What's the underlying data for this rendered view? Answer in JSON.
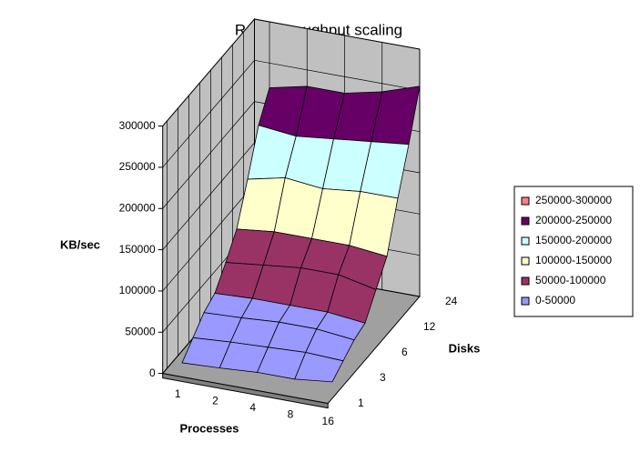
{
  "chart_data": {
    "type": "surface",
    "title": "Read throughput scaling",
    "z_label": "KB/sec",
    "x_label": "Processes",
    "y_label": "Disks",
    "x_categories": [
      1,
      2,
      4,
      8,
      16
    ],
    "y_categories": [
      1,
      null,
      3,
      null,
      6,
      null,
      12,
      null,
      24
    ],
    "values": [
      [
        10000,
        12000,
        15000,
        15000,
        20000
      ],
      [
        25000,
        28000,
        30000,
        32000,
        30000
      ],
      [
        40000,
        42000,
        45000,
        45000,
        40000
      ],
      [
        48000,
        50000,
        50000,
        50000,
        45000
      ],
      [
        70000,
        75000,
        80000,
        80000,
        70000
      ],
      [
        95000,
        100000,
        100000,
        100000,
        95000
      ],
      [
        140000,
        150000,
        145000,
        150000,
        150000
      ],
      [
        190000,
        185000,
        190000,
        195000,
        200000
      ],
      [
        220000,
        230000,
        230000,
        240000,
        255000
      ]
    ],
    "zlim": [
      0,
      300000
    ],
    "zticks": [
      0,
      50000,
      100000,
      150000,
      200000,
      250000,
      300000
    ],
    "bands": [
      {
        "name": "250000-300000",
        "color": "#ff8080",
        "min": 250000,
        "max": 300000
      },
      {
        "name": "200000-250000",
        "color": "#660066",
        "min": 200000,
        "max": 250000
      },
      {
        "name": "150000-200000",
        "color": "#ccffff",
        "min": 150000,
        "max": 200000
      },
      {
        "name": "100000-150000",
        "color": "#ffffcc",
        "min": 100000,
        "max": 150000
      },
      {
        "name": "50000-100000",
        "color": "#993366",
        "min": 50000,
        "max": 100000
      },
      {
        "name": "0-50000",
        "color": "#9999ff",
        "min": 0,
        "max": 50000
      }
    ],
    "legend": "right"
  }
}
